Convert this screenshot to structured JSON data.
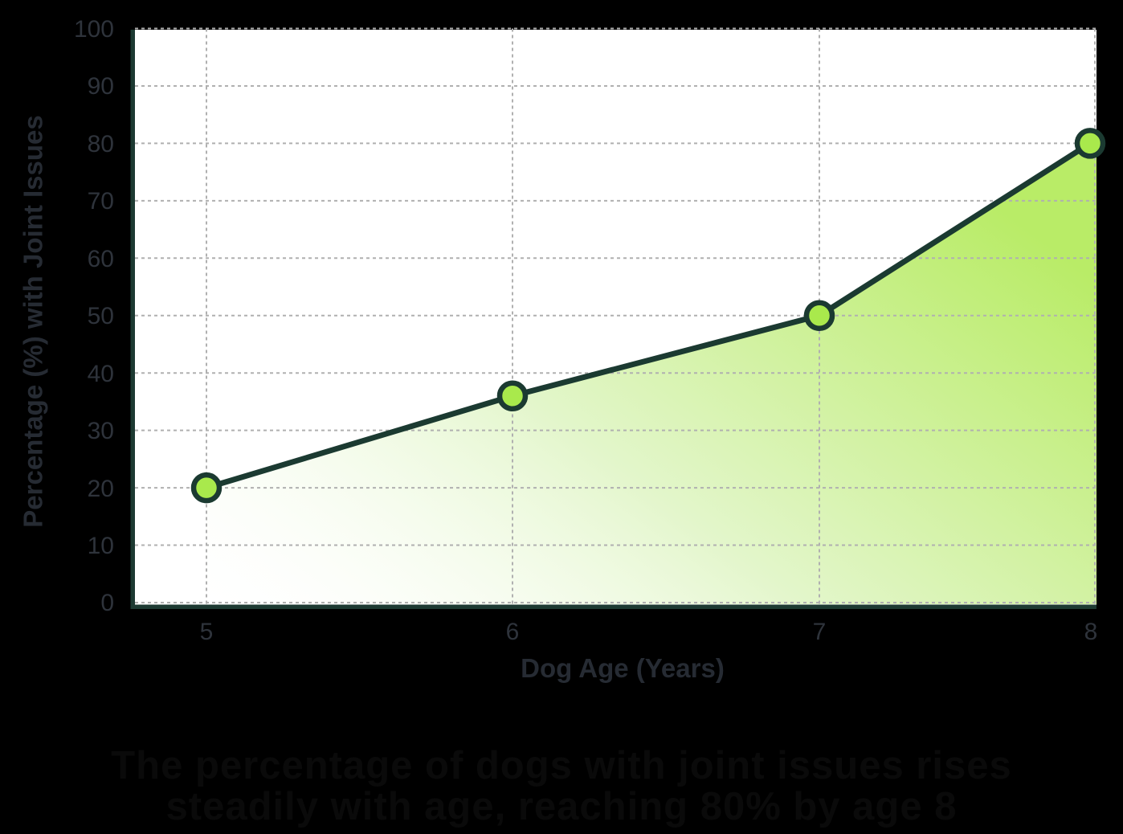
{
  "chart_data": {
    "type": "area",
    "x": [
      5,
      6,
      7,
      8
    ],
    "values": [
      20,
      36,
      50,
      80
    ],
    "series": [
      {
        "name": "Percentage with Joint Issues",
        "values": [
          20,
          36,
          50,
          80
        ]
      }
    ],
    "xlabel": "Dog Age (Years)",
    "ylabel": "Percentage (%) with Joint Issues",
    "x_ticks": [
      5,
      6,
      7,
      8
    ],
    "y_ticks": [
      0,
      10,
      20,
      30,
      40,
      50,
      60,
      70,
      80,
      90,
      100
    ],
    "xlim": [
      5,
      8
    ],
    "ylim": [
      0,
      100
    ],
    "grid": "dashed-gray-on",
    "legend": "none",
    "colors": {
      "page_background": "#000000",
      "plot_background": "#ffffff",
      "line": "#1b3a31",
      "marker_fill": "#a9e94c",
      "marker_stroke": "#1b3a31",
      "gridline": "#b0b0b0",
      "tick_label": "#2e333b",
      "axis_title": "#262b33",
      "area_gradient_start": "#ffffff",
      "area_gradient_end": "#b9ec67"
    }
  },
  "footer_caption": {
    "line1": "The percentage of dogs with joint issues rises",
    "line2": "steadily with age, reaching 80% by age 8"
  }
}
